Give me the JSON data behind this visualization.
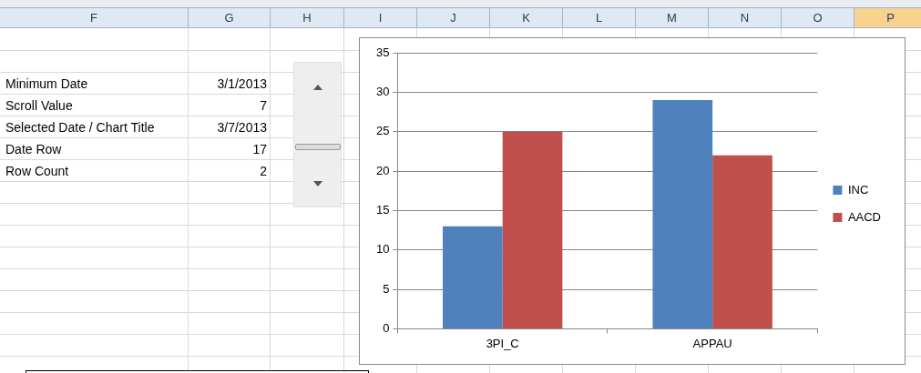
{
  "chart_data": [
    {
      "type": "other",
      "categories": [
        "F",
        "G",
        "H",
        "I",
        "J",
        "K",
        "L",
        "M",
        "N",
        "O",
        "P"
      ],
      "annotations": [
        "Minimum Date",
        "3/1/2013",
        "Scroll Value",
        "7",
        "Selected Date / Chart Title",
        "3/7/2013",
        "Date Row",
        "17",
        "Row Count",
        "2"
      ]
    },
    {
      "type": "bar",
      "categories": [
        "3PI_C",
        "APPAU"
      ],
      "series": [
        {
          "name": "INC",
          "color": "#4f81bd",
          "values": [
            13,
            29
          ]
        },
        {
          "name": "AACD",
          "color": "#c0504d",
          "values": [
            25,
            22
          ]
        }
      ],
      "ylim": [
        0,
        35
      ],
      "yticks": [
        0,
        5,
        10,
        15,
        20,
        25,
        30,
        35
      ],
      "grid": "y",
      "legend": "right"
    }
  ]
}
